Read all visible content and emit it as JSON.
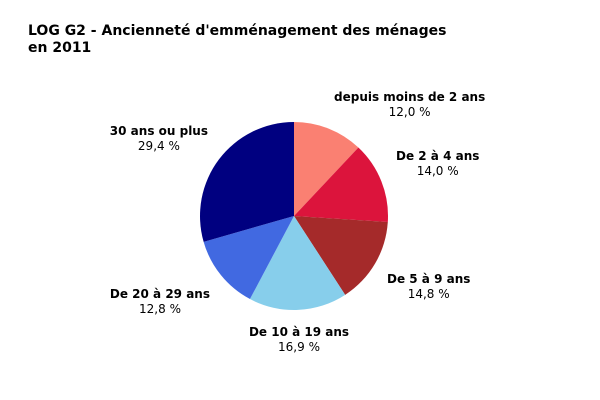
{
  "chart_data": {
    "type": "pie",
    "title": "LOG G2 - Ancienneté d'emménagement des ménages en 2011",
    "slices": [
      {
        "label": "depuis moins de 2 ans",
        "value": 12.0,
        "value_text": "12,0 %",
        "color": "#fa8072"
      },
      {
        "label": "De 2 à 4 ans",
        "value": 14.0,
        "value_text": "14,0 %",
        "color": "#dc143c"
      },
      {
        "label": "De 5 à 9 ans",
        "value": 14.8,
        "value_text": "14,8 %",
        "color": "#a52a2a"
      },
      {
        "label": "De 10 à 19 ans",
        "value": 16.9,
        "value_text": "16,9 %",
        "color": "#87ceeb"
      },
      {
        "label": "De 20 à 29 ans",
        "value": 12.8,
        "value_text": "12,8 %",
        "color": "#4169e1"
      },
      {
        "label": "30 ans ou plus",
        "value": 29.4,
        "value_text": "29,4 %",
        "color": "#000080"
      }
    ]
  }
}
